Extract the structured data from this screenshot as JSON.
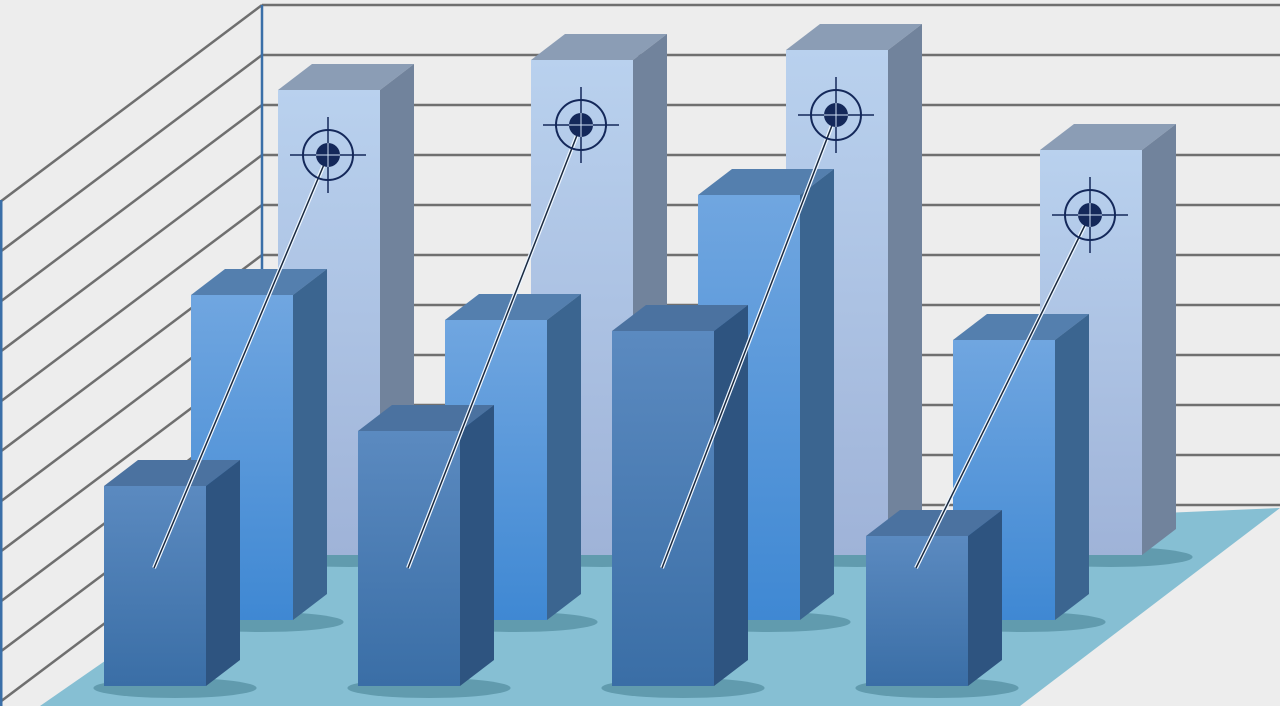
{
  "chart_data": {
    "type": "bar",
    "style": "3d-clustered",
    "grid": true,
    "categories": [
      "",
      "",
      "",
      ""
    ],
    "series": [
      {
        "values": [
          9.3,
          9.9,
          10.1,
          8.1
        ],
        "color": "#b3cbe9",
        "marker": "target-icon"
      },
      {
        "values": [
          6.5,
          6.0,
          8.5,
          5.6
        ],
        "color": "#5b9be0"
      },
      {
        "values": [
          4.0,
          5.1,
          7.1,
          3.0
        ],
        "color": "#4a80b8"
      }
    ],
    "ylim": [
      0,
      11
    ],
    "colors": {
      "wall": "#ededed",
      "gridline": "#6f6f6f",
      "floor": "#86bfd3",
      "axis": "#3a6fa8",
      "marker": "#14285a"
    }
  }
}
